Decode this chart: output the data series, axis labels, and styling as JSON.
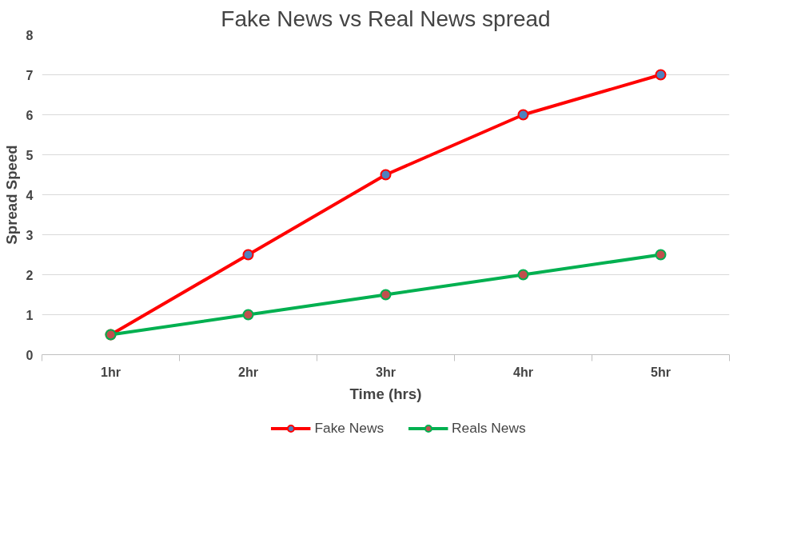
{
  "chart_data": {
    "type": "line",
    "title": "Fake News vs Real News spread",
    "xlabel": "Time (hrs)",
    "ylabel": "Spread Speed",
    "categories": [
      "1hr",
      "2hr",
      "3hr",
      "4hr",
      "5hr"
    ],
    "series": [
      {
        "name": "Fake News",
        "color": "#ff0000",
        "colors": [
          "#4f81bd",
          "#4f81bd",
          "#4f81bd",
          "#4f81bd",
          "#4f81bd"
        ],
        "values": [
          0.5,
          2.5,
          4.5,
          6,
          7
        ]
      },
      {
        "name": "Reals News",
        "color": "#00b050",
        "colors": [
          "#c0504d",
          "#c0504d",
          "#c0504d",
          "#c0504d",
          "#c0504d"
        ],
        "values": [
          0.5,
          1,
          1.5,
          2,
          2.5
        ]
      }
    ],
    "ylim": [
      0,
      8
    ],
    "yticks": [
      0,
      1,
      2,
      3,
      4,
      5,
      6,
      7,
      8
    ],
    "grid": "y",
    "legend": "bottom",
    "marker": "circle",
    "line_style": "solid"
  }
}
